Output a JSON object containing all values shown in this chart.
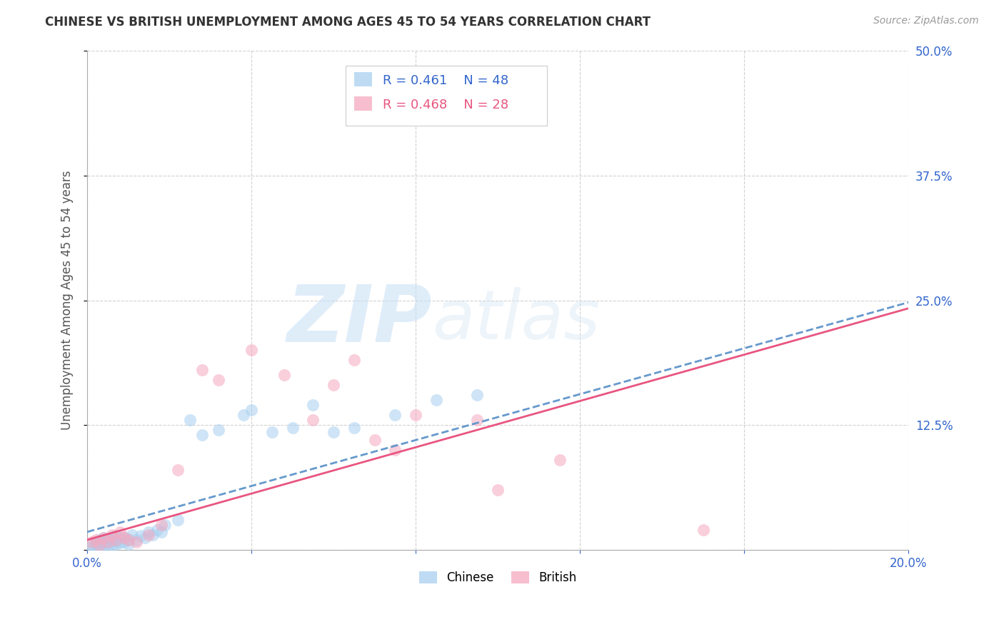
{
  "title": "CHINESE VS BRITISH UNEMPLOYMENT AMONG AGES 45 TO 54 YEARS CORRELATION CHART",
  "source": "Source: ZipAtlas.com",
  "ylabel": "Unemployment Among Ages 45 to 54 years",
  "xlim": [
    0.0,
    0.2
  ],
  "ylim": [
    0.0,
    0.5
  ],
  "xticks": [
    0.0,
    0.04,
    0.08,
    0.12,
    0.16,
    0.2
  ],
  "yticks": [
    0.0,
    0.125,
    0.25,
    0.375,
    0.5
  ],
  "xtick_labels": [
    "0.0%",
    "",
    "",
    "",
    "",
    "20.0%"
  ],
  "ytick_labels_right": [
    "",
    "12.5%",
    "25.0%",
    "37.5%",
    "50.0%"
  ],
  "background_color": "#ffffff",
  "grid_color": "#cccccc",
  "chinese_color": "#a8cff0",
  "british_color": "#f5a8c0",
  "chinese_line_color": "#6699cc",
  "british_line_color": "#e85580",
  "legend_r_chinese": "R = 0.461",
  "legend_n_chinese": "N = 48",
  "legend_r_british": "R = 0.468",
  "legend_n_british": "N = 28",
  "chinese_scatter_x": [
    0.001,
    0.001,
    0.002,
    0.002,
    0.003,
    0.003,
    0.003,
    0.004,
    0.004,
    0.004,
    0.005,
    0.005,
    0.005,
    0.006,
    0.006,
    0.006,
    0.007,
    0.007,
    0.007,
    0.008,
    0.008,
    0.009,
    0.009,
    0.01,
    0.01,
    0.011,
    0.012,
    0.013,
    0.014,
    0.015,
    0.016,
    0.017,
    0.018,
    0.019,
    0.022,
    0.025,
    0.028,
    0.032,
    0.038,
    0.04,
    0.045,
    0.05,
    0.055,
    0.06,
    0.065,
    0.075,
    0.085,
    0.095
  ],
  "chinese_scatter_y": [
    0.003,
    0.006,
    0.004,
    0.008,
    0.003,
    0.007,
    0.01,
    0.005,
    0.008,
    0.012,
    0.004,
    0.007,
    0.011,
    0.005,
    0.009,
    0.013,
    0.006,
    0.009,
    0.014,
    0.007,
    0.012,
    0.008,
    0.013,
    0.006,
    0.011,
    0.015,
    0.01,
    0.014,
    0.012,
    0.018,
    0.015,
    0.02,
    0.018,
    0.025,
    0.03,
    0.13,
    0.115,
    0.12,
    0.135,
    0.14,
    0.118,
    0.122,
    0.145,
    0.118,
    0.122,
    0.135,
    0.15,
    0.155
  ],
  "british_scatter_x": [
    0.001,
    0.002,
    0.003,
    0.004,
    0.005,
    0.006,
    0.007,
    0.008,
    0.009,
    0.01,
    0.012,
    0.015,
    0.018,
    0.022,
    0.028,
    0.032,
    0.04,
    0.048,
    0.055,
    0.06,
    0.065,
    0.07,
    0.075,
    0.08,
    0.095,
    0.1,
    0.115,
    0.15
  ],
  "british_scatter_y": [
    0.008,
    0.01,
    0.005,
    0.012,
    0.008,
    0.015,
    0.01,
    0.018,
    0.012,
    0.01,
    0.008,
    0.015,
    0.025,
    0.08,
    0.18,
    0.17,
    0.2,
    0.175,
    0.13,
    0.165,
    0.19,
    0.11,
    0.1,
    0.135,
    0.13,
    0.06,
    0.09,
    0.02
  ],
  "chinese_line_x0": 0.0,
  "chinese_line_y0": 0.018,
  "chinese_line_x1": 0.2,
  "chinese_line_y1": 0.248,
  "british_line_x0": 0.0,
  "british_line_y0": 0.01,
  "british_line_x1": 0.2,
  "british_line_y1": 0.242,
  "watermark_zip": "ZIP",
  "watermark_atlas": "atlas",
  "title_fontsize": 12,
  "source_fontsize": 10,
  "tick_fontsize": 12,
  "ylabel_fontsize": 12
}
